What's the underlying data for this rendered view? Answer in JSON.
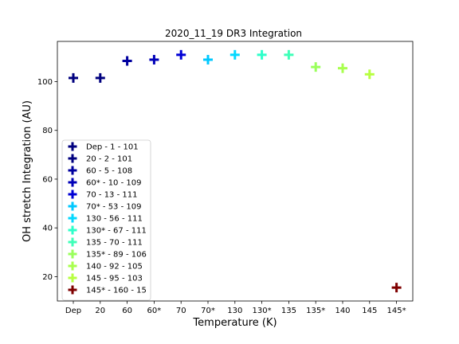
{
  "chart_data": {
    "type": "scatter",
    "title": "2020_11_19 DR3 Integration",
    "xlabel": "Temperature (K)",
    "ylabel": "OH stretch Integration (AU)",
    "categories": [
      "Dep",
      "20",
      "60",
      "60*",
      "70",
      "70*",
      "130",
      "130*",
      "135",
      "135*",
      "140",
      "145",
      "145*"
    ],
    "yticks": [
      20,
      40,
      60,
      80,
      100
    ],
    "ylim": [
      10,
      116.5
    ],
    "grid": false,
    "legend_position": "lower-left",
    "marker": "plus",
    "series": [
      {
        "name": "Dep - 1 - 101",
        "x": "Dep",
        "y": 101.5,
        "color": "#00007f"
      },
      {
        "name": "20 - 2 - 101",
        "x": "20",
        "y": 101.5,
        "color": "#00007f"
      },
      {
        "name": "60 - 5 - 108",
        "x": "60",
        "y": 108.5,
        "color": "#00009f"
      },
      {
        "name": "60* - 10 - 109",
        "x": "60*",
        "y": 109.0,
        "color": "#0000b8"
      },
      {
        "name": "70 - 13 - 111",
        "x": "70",
        "y": 111.0,
        "color": "#0000d5"
      },
      {
        "name": "70* - 53 - 109",
        "x": "70*",
        "y": 109.0,
        "color": "#00c8ff"
      },
      {
        "name": "130 - 56 - 111",
        "x": "130",
        "y": 111.0,
        "color": "#04d8ff"
      },
      {
        "name": "130* - 67 - 111",
        "x": "130*",
        "y": 111.0,
        "color": "#2effca"
      },
      {
        "name": "135 - 70 - 111",
        "x": "135",
        "y": 111.0,
        "color": "#3fffb8"
      },
      {
        "name": "135* - 89 - 106",
        "x": "135*",
        "y": 106.0,
        "color": "#9aff5c"
      },
      {
        "name": "140 - 92 - 105",
        "x": "140",
        "y": 105.5,
        "color": "#a8ff4e"
      },
      {
        "name": "145 - 95 - 103",
        "x": "145",
        "y": 103.0,
        "color": "#b7ff40"
      },
      {
        "name": "145* - 160 - 15",
        "x": "145*",
        "y": 15.5,
        "color": "#7f0000"
      }
    ]
  }
}
